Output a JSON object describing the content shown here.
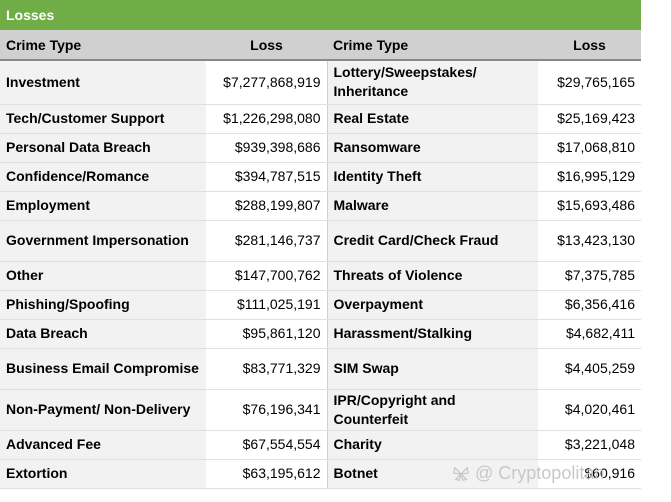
{
  "title": "Losses",
  "headers": [
    "Crime Type",
    "Loss",
    "Crime Type",
    "Loss"
  ],
  "rows": [
    {
      "c1": "Investment",
      "l1": "$7,277,868,919",
      "c2": "Lottery/Sweepstakes/ Inheritance",
      "l2": "$29,765,165"
    },
    {
      "c1": "Tech/Customer Support",
      "l1": "$1,226,298,080",
      "c2": "Real Estate",
      "l2": "$25,169,423"
    },
    {
      "c1": "Personal Data Breach",
      "l1": "$939,398,686",
      "c2": "Ransomware",
      "l2": "$17,068,810"
    },
    {
      "c1": "Confidence/Romance",
      "l1": "$394,787,515",
      "c2": "Identity Theft",
      "l2": "$16,995,129"
    },
    {
      "c1": "Employment",
      "l1": "$288,199,807",
      "c2": "Malware",
      "l2": "$15,693,486"
    },
    {
      "c1": "Government Impersonation",
      "l1": "$281,146,737",
      "c2": "Credit Card/Check Fraud",
      "l2": "$13,423,130"
    },
    {
      "c1": "Other",
      "l1": "$147,700,762",
      "c2": "Threats of Violence",
      "l2": "$7,375,785"
    },
    {
      "c1": "Phishing/Spoofing",
      "l1": "$111,025,191",
      "c2": "Overpayment",
      "l2": "$6,356,416"
    },
    {
      "c1": "Data Breach",
      "l1": "$95,861,120",
      "c2": "Harassment/Stalking",
      "l2": "$4,682,411"
    },
    {
      "c1": "Business Email Compromise",
      "l1": "$83,771,329",
      "c2": "SIM Swap",
      "l2": "$4,405,259"
    },
    {
      "c1": "Non-Payment/ Non-Delivery",
      "l1": "$76,196,341",
      "c2": "IPR/Copyright and Counterfeit",
      "l2": "$4,020,461"
    },
    {
      "c1": "Advanced Fee",
      "l1": "$67,554,554",
      "c2": "Charity",
      "l2": "$3,221,048"
    },
    {
      "c1": "Extortion",
      "l1": "$63,195,612",
      "c2": "Botnet",
      "l2": "$60,916"
    }
  ],
  "watermark": "@ Cryptopolitan",
  "watermark_icon": "butterfly-logo-icon",
  "colors": {
    "title_bg": "#70ad47",
    "header_bg": "#d0d0d0",
    "crime_bg": "#f2f2f2"
  }
}
